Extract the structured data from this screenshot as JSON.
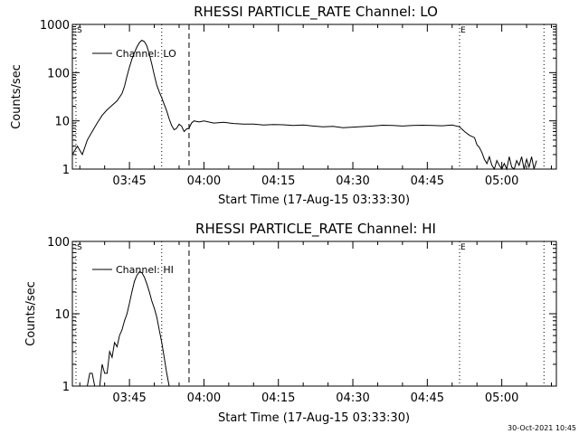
{
  "chart_data": [
    {
      "type": "line",
      "title": "RHESSI PARTICLE_RATE Channel: LO",
      "xlabel": "Start Time (17-Aug-15 03:33:30)",
      "ylabel": "Counts/sec",
      "yscale": "log",
      "ylim": [
        1,
        1000
      ],
      "xlim": [
        "03:33:30",
        "05:11:00"
      ],
      "x_ticks": [
        "03:45",
        "04:00",
        "04:15",
        "04:30",
        "04:45",
        "05:00"
      ],
      "y_ticks": [
        "1",
        "10",
        "100",
        "1000"
      ],
      "legend": {
        "placement": "top-left",
        "entries": [
          "Channel: LO"
        ]
      },
      "markers": [
        {
          "label": "S",
          "time": "03:33:30",
          "style": "dotted"
        },
        {
          "label": "",
          "time": "03:51:30",
          "style": "dotted"
        },
        {
          "label": "",
          "time": "03:57:00",
          "style": "dashed"
        },
        {
          "label": "E",
          "time": "04:51:30",
          "style": "dotted"
        },
        {
          "label": "",
          "time": "05:08:30",
          "style": "dotted"
        }
      ],
      "series": [
        {
          "name": "Channel: LO",
          "x": [
            "03:33:30",
            "03:34:30",
            "03:35:30",
            "03:36:30",
            "03:37:30",
            "03:38:30",
            "03:39:30",
            "03:40:30",
            "03:41:30",
            "03:42:30",
            "03:43:30",
            "03:44:00",
            "03:44:30",
            "03:45:00",
            "03:45:30",
            "03:46:00",
            "03:46:30",
            "03:47:00",
            "03:47:30",
            "03:48:00",
            "03:48:30",
            "03:49:00",
            "03:49:30",
            "03:50:00",
            "03:50:30",
            "03:51:00",
            "03:51:30",
            "03:52:00",
            "03:52:30",
            "03:53:00",
            "03:53:30",
            "03:54:00",
            "03:54:30",
            "03:55:00",
            "03:55:30",
            "03:56:00",
            "03:56:30",
            "03:57:00",
            "03:57:30",
            "03:58:00",
            "03:59:00",
            "04:00:00",
            "04:02:00",
            "04:04:00",
            "04:06:00",
            "04:08:00",
            "04:10:00",
            "04:12:00",
            "04:14:00",
            "04:16:00",
            "04:18:00",
            "04:20:00",
            "04:22:00",
            "04:24:00",
            "04:26:00",
            "04:28:00",
            "04:30:00",
            "04:32:00",
            "04:34:00",
            "04:36:00",
            "04:38:00",
            "04:40:00",
            "04:42:00",
            "04:44:00",
            "04:46:00",
            "04:48:00",
            "04:50:00",
            "04:51:30",
            "04:52:30",
            "04:53:30",
            "04:54:30",
            "04:55:00",
            "04:55:30",
            "04:56:00",
            "04:56:30",
            "04:57:00",
            "04:57:30",
            "04:58:00",
            "04:58:30",
            "04:59:00",
            "04:59:30",
            "05:00:00",
            "05:00:30",
            "05:01:00",
            "05:01:30",
            "05:02:00",
            "05:02:30",
            "05:03:00",
            "05:03:30",
            "05:04:00",
            "05:04:30",
            "05:05:00",
            "05:05:30",
            "05:06:00",
            "05:06:30",
            "05:07:00"
          ],
          "values": [
            2,
            3,
            2,
            4,
            6,
            9,
            13,
            17,
            21,
            26,
            37,
            52,
            85,
            130,
            190,
            260,
            340,
            420,
            470,
            440,
            360,
            240,
            150,
            90,
            55,
            40,
            30,
            22,
            16,
            11,
            8,
            6.5,
            7,
            8.5,
            7.8,
            6,
            6.8,
            7,
            9,
            10,
            9.5,
            10,
            9,
            9.3,
            8.8,
            8.6,
            8.6,
            8.2,
            8.4,
            8.3,
            8,
            8.2,
            7.8,
            7.5,
            7.7,
            7.2,
            7.4,
            7.6,
            7.8,
            8.1,
            8,
            7.8,
            8,
            8.1,
            8,
            7.9,
            8.2,
            7.5,
            6,
            5,
            4.5,
            3.2,
            2.8,
            2.2,
            1.6,
            1.3,
            1.8,
            1.2,
            1,
            1.5,
            1.2,
            1,
            1.3,
            1,
            1.8,
            1.1,
            1,
            1.5,
            1.2,
            1.8,
            1,
            1.6,
            1.1,
            1.8,
            1,
            1.5
          ]
        }
      ]
    },
    {
      "type": "line",
      "title": "RHESSI PARTICLE_RATE Channel: HI",
      "xlabel": "Start Time (17-Aug-15 03:33:30)",
      "ylabel": "Counts/sec",
      "yscale": "log",
      "ylim": [
        1,
        100
      ],
      "xlim": [
        "03:33:30",
        "05:11:00"
      ],
      "x_ticks": [
        "03:45",
        "04:00",
        "04:15",
        "04:30",
        "04:45",
        "05:00"
      ],
      "y_ticks": [
        "1",
        "10",
        "100"
      ],
      "legend": {
        "placement": "top-left",
        "entries": [
          "Channel: HI"
        ]
      },
      "markers": [
        {
          "label": "S",
          "time": "03:33:30",
          "style": "dotted"
        },
        {
          "label": "",
          "time": "03:51:30",
          "style": "dotted"
        },
        {
          "label": "",
          "time": "03:57:00",
          "style": "dashed"
        },
        {
          "label": "E",
          "time": "04:51:30",
          "style": "dotted"
        },
        {
          "label": "",
          "time": "05:08:30",
          "style": "dotted"
        }
      ],
      "series": [
        {
          "name": "Channel: HI",
          "x": [
            "03:36:00",
            "03:36:30",
            "03:37:00",
            "03:37:30",
            "03:38:00",
            "03:38:30",
            "03:39:00",
            "03:39:30",
            "03:40:00",
            "03:40:30",
            "03:41:00",
            "03:41:30",
            "03:42:00",
            "03:42:30",
            "03:43:00",
            "03:43:30",
            "03:44:00",
            "03:44:30",
            "03:45:00",
            "03:45:30",
            "03:46:00",
            "03:46:30",
            "03:47:00",
            "03:47:30",
            "03:48:00",
            "03:48:30",
            "03:49:00",
            "03:49:30",
            "03:50:00",
            "03:50:30",
            "03:51:00",
            "03:51:30",
            "03:52:00",
            "03:52:30",
            "03:53:00"
          ],
          "values": [
            1,
            1,
            1.5,
            1.5,
            1,
            1,
            1,
            2,
            1.5,
            1.5,
            3,
            2.5,
            4,
            3.5,
            5,
            6,
            8,
            10,
            14,
            20,
            28,
            34,
            38,
            37,
            32,
            26,
            20,
            15,
            12,
            9,
            6,
            4,
            2.5,
            1.5,
            1
          ]
        }
      ]
    }
  ],
  "timestamp": "30-Oct-2021 10:45"
}
